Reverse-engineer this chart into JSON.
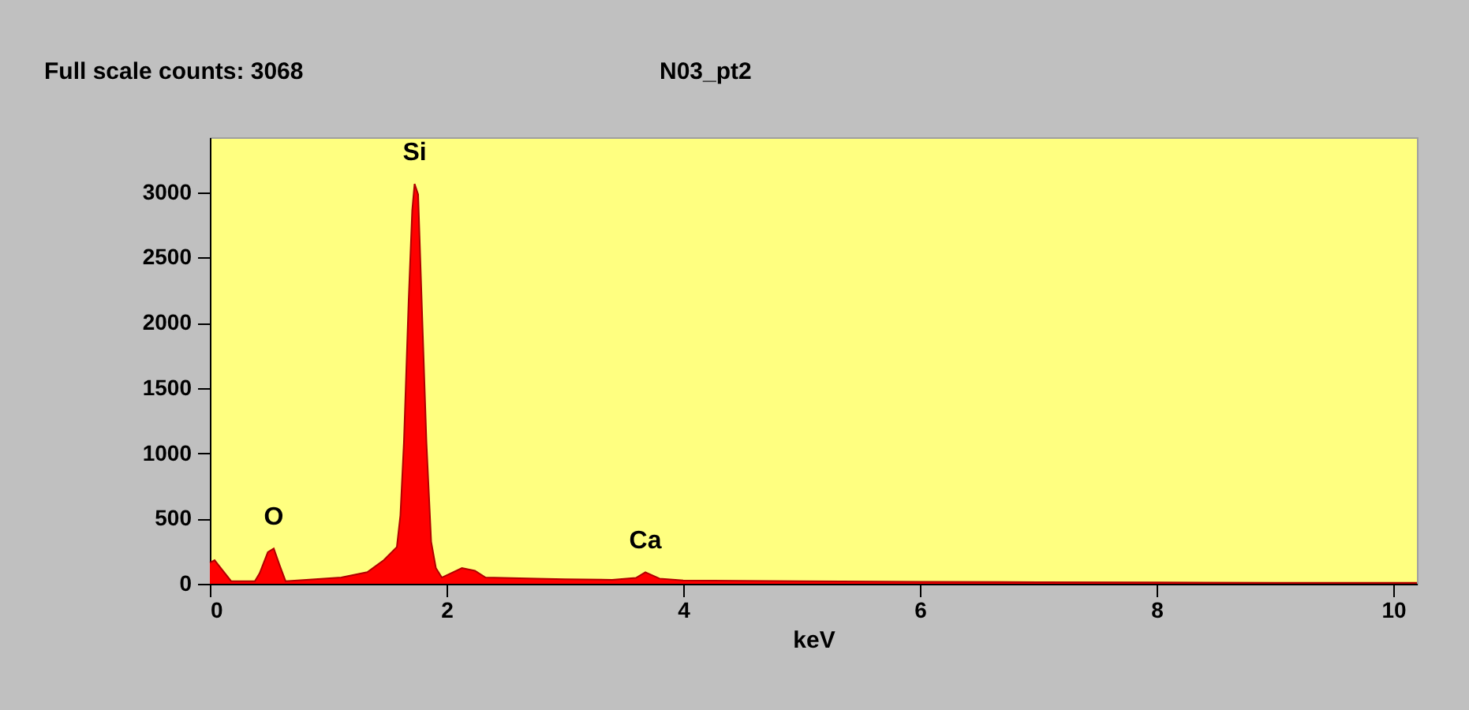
{
  "chart_data": {
    "type": "area",
    "title": "Full scale counts: 3068",
    "subtitle": "N03_pt2",
    "xlabel": "keV",
    "x": [
      0,
      0.04,
      0.11,
      0.18,
      0.38,
      0.42,
      0.49,
      0.54,
      0.59,
      0.64,
      0.84,
      1.11,
      1.33,
      1.47,
      1.58,
      1.61,
      1.64,
      1.68,
      1.71,
      1.73,
      1.76,
      1.8,
      1.83,
      1.87,
      1.91,
      1.96,
      2.02,
      2.13,
      2.24,
      2.33,
      2.76,
      3.0,
      3.4,
      3.6,
      3.68,
      3.8,
      4.0,
      5.0,
      6.0,
      7.0,
      8.0,
      9.0,
      10.2
    ],
    "series": [
      {
        "color": "#ff0000",
        "values": [
          161,
          181,
          100,
          20,
          20,
          80,
          242,
          270,
          141,
          20,
          32,
          48,
          89,
          181,
          282,
          524,
          1088,
          2176,
          2861,
          3063,
          2982,
          1894,
          1088,
          322,
          121,
          48,
          73,
          121,
          100,
          48,
          40,
          35,
          30,
          45,
          88,
          40,
          25,
          20,
          15,
          12,
          10,
          8,
          8
        ]
      }
    ],
    "annotations": [
      {
        "text": "O",
        "x": 0.54,
        "y": 270
      },
      {
        "text": "Si",
        "x": 1.73,
        "y": 3063
      },
      {
        "text": "Ca",
        "x": 3.68,
        "y": 88
      }
    ],
    "xlim": [
      0,
      10.2
    ],
    "xticks": [
      0,
      2,
      4,
      6,
      8,
      10
    ],
    "ylim": [
      0,
      3420
    ],
    "yticks": [
      0,
      500,
      1000,
      1500,
      2000,
      2500,
      3000
    ],
    "grid": false
  }
}
